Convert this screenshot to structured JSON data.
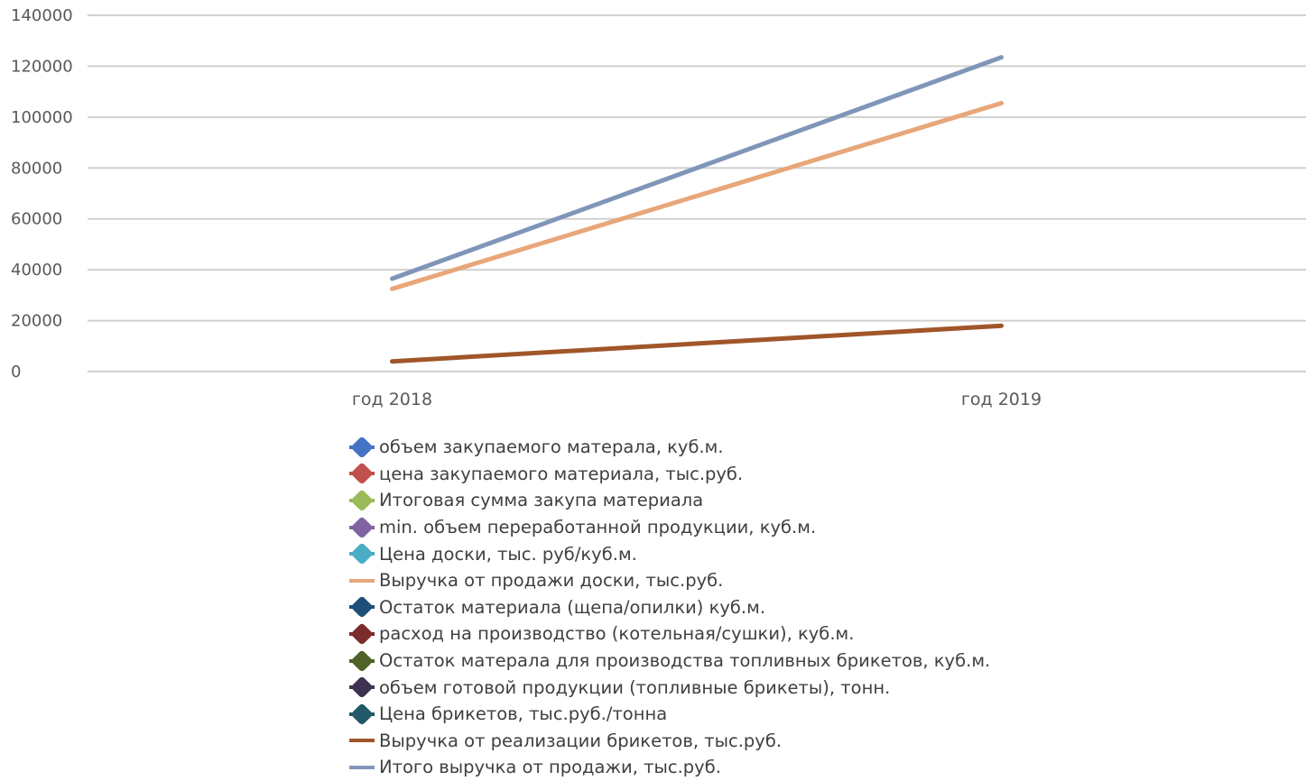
{
  "chart_data": {
    "type": "line",
    "categories": [
      "год 2018",
      "год 2019"
    ],
    "y_ticks": [
      "0",
      "20000",
      "40000",
      "60000",
      "80000",
      "100000",
      "120000",
      "140000"
    ],
    "ylim": [
      0,
      140000
    ],
    "grid": true,
    "legend_position": "bottom",
    "series": [
      {
        "name": "объем закупаемого матерала, куб.м.",
        "color": "#4472c4",
        "style": "marker",
        "values": [
          null,
          null
        ]
      },
      {
        "name": "цена закупаемого материала, тыс.руб.",
        "color": "#c0504d",
        "style": "marker",
        "values": [
          null,
          null
        ]
      },
      {
        "name": "Итоговая сумма закупа материала",
        "color": "#9bbb59",
        "style": "marker",
        "values": [
          null,
          null
        ]
      },
      {
        "name": "min. объем переработанной продукции, куб.м.",
        "color": "#8064a2",
        "style": "marker",
        "values": [
          null,
          null
        ]
      },
      {
        "name": "Цена доски, тыс. руб/куб.м.",
        "color": "#4bacc6",
        "style": "marker",
        "values": [
          null,
          null
        ]
      },
      {
        "name": "Выручка от продажи доски, тыс.руб.",
        "color": "#e8a679",
        "style": "line",
        "values": [
          32500,
          105500
        ]
      },
      {
        "name": "Остаток материала (щепа/опилки) куб.м.",
        "color": "#1f4e79",
        "style": "marker",
        "values": [
          null,
          null
        ]
      },
      {
        "name": "расход на производство (котельная/сушки), куб.м.",
        "color": "#7b2c2a",
        "style": "marker",
        "values": [
          null,
          null
        ]
      },
      {
        "name": "Остаток матерала для производства топливных брикетов, куб.м.",
        "color": "#4f6228",
        "style": "marker",
        "values": [
          null,
          null
        ]
      },
      {
        "name": "объем готовой продукции (топливные брикеты), тонн.",
        "color": "#3f3151",
        "style": "marker",
        "values": [
          null,
          null
        ]
      },
      {
        "name": "Цена брикетов, тыс.руб./тонна",
        "color": "#215968",
        "style": "marker",
        "values": [
          null,
          null
        ]
      },
      {
        "name": "Выручка от реализации брикетов, тыс.руб.",
        "color": "#a0562a",
        "style": "line",
        "values": [
          4000,
          18000
        ]
      },
      {
        "name": "Итого выручка от продажи, тыс.руб.",
        "color": "#7f96b8",
        "style": "line",
        "values": [
          36500,
          123500
        ]
      }
    ]
  }
}
